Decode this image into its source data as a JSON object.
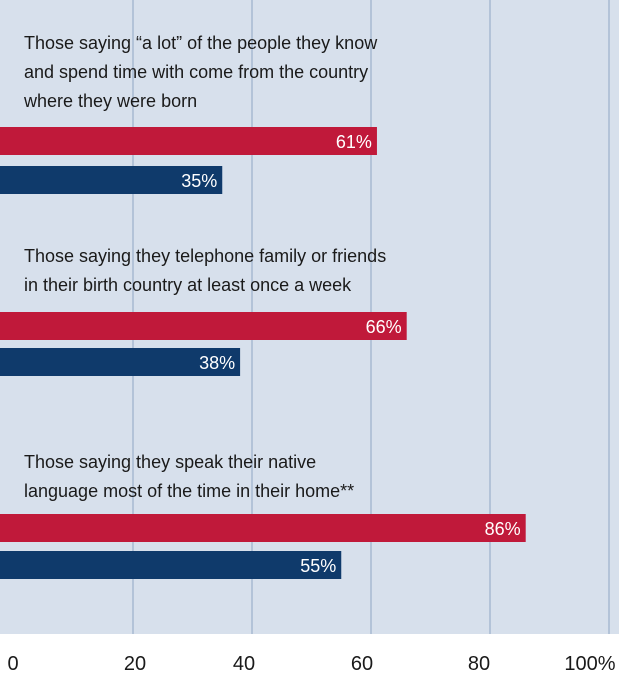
{
  "chart_data": {
    "type": "bar",
    "orientation": "horizontal",
    "background": "#d7e0ec",
    "grid_color": "#b3c3d8",
    "series_colors": [
      "#c0193a",
      "#0f3a6b"
    ],
    "xlim": [
      0,
      100
    ],
    "x_ticks": [
      "0",
      "20",
      "40",
      "60",
      "80",
      "100%"
    ],
    "categories": [
      [
        "Those saying “a lot” of the people they know",
        "and spend time with come from the country",
        "where they were born"
      ],
      [
        "Those saying they telephone family or friends",
        "in their birth country at least once a week"
      ],
      [
        "Those saying they speak their native",
        "language most of the time in their home**"
      ]
    ],
    "series": [
      {
        "values": [
          61,
          66,
          86
        ],
        "labels": [
          "61%",
          "66%",
          "86%"
        ]
      },
      {
        "values": [
          35,
          38,
          55
        ],
        "labels": [
          "35%",
          "38%",
          "55%"
        ]
      }
    ]
  }
}
